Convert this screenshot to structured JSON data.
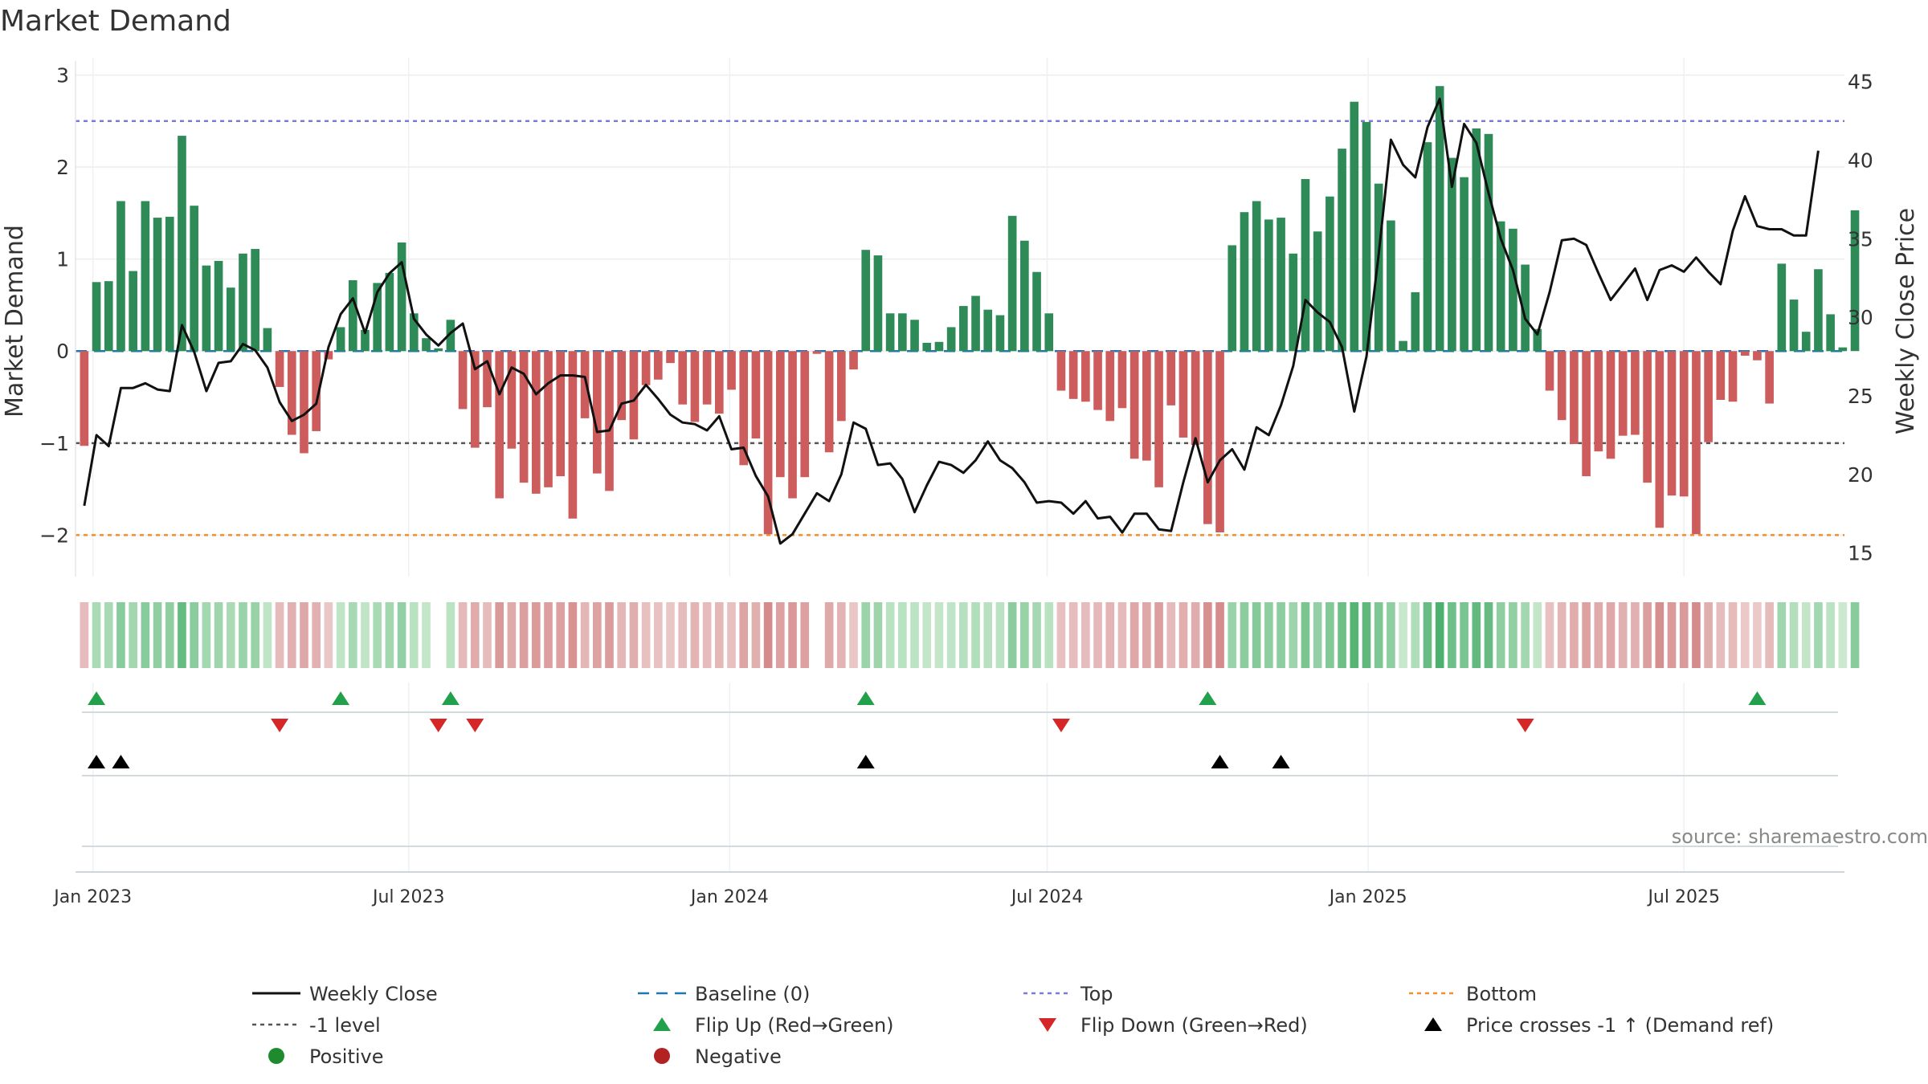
{
  "chart_data": {
    "type": "bar",
    "title": "Market Demand",
    "ylabel_left": "Market Demand",
    "ylabel_right": "Weekly Close Price",
    "ylim_left": [
      -2.45,
      3.1
    ],
    "ylim_right": [
      13.5,
      46
    ],
    "yticks_left": [
      {
        "value": 3,
        "label": "3"
      },
      {
        "value": 2,
        "label": "2"
      },
      {
        "value": 1,
        "label": "1"
      },
      {
        "value": 0,
        "label": "0"
      },
      {
        "value": -1,
        "label": "−1"
      },
      {
        "value": -2,
        "label": "−2"
      }
    ],
    "yticks_right": [
      15,
      20,
      25,
      30,
      35,
      40,
      45
    ],
    "start_date": "2022-12-27",
    "weeks": 144,
    "x_range_days": [
      -5,
      1009
    ],
    "xticks": [
      {
        "label": "Jan 2023",
        "day": 5
      },
      {
        "label": "Jul 2023",
        "day": 186
      },
      {
        "label": "Jan 2024",
        "day": 370
      },
      {
        "label": "Jul 2024",
        "day": 552
      },
      {
        "label": "Jan 2025",
        "day": 736
      },
      {
        "label": "Jul 2025",
        "day": 917
      }
    ],
    "reference_lines": {
      "top": 2.5,
      "bottom": -2.0,
      "minus_one": -1.0,
      "baseline": 0
    },
    "series": [
      {
        "name": "Market Demand",
        "values": [
          -1.03,
          0.75,
          0.76,
          1.63,
          0.87,
          1.63,
          1.45,
          1.46,
          2.34,
          1.58,
          0.93,
          0.98,
          0.69,
          1.06,
          1.11,
          0.25,
          -0.39,
          -0.91,
          -1.11,
          -0.87,
          -0.09,
          0.26,
          0.77,
          0.23,
          0.74,
          0.85,
          1.18,
          0.41,
          0.14,
          0.03,
          0.34,
          -0.63,
          -1.05,
          -0.61,
          -1.6,
          -1.06,
          -1.43,
          -1.55,
          -1.48,
          -1.36,
          -1.82,
          -0.73,
          -1.33,
          -1.52,
          -0.75,
          -0.96,
          -0.37,
          -0.31,
          -0.13,
          -0.58,
          -0.77,
          -0.58,
          -0.68,
          -0.42,
          -1.24,
          -0.95,
          -1.99,
          -1.37,
          -1.6,
          -1.37,
          -0.03,
          -1.1,
          -0.76,
          -0.2,
          1.1,
          1.04,
          0.41,
          0.41,
          0.34,
          0.09,
          0.1,
          0.26,
          0.49,
          0.6,
          0.45,
          0.39,
          1.47,
          1.2,
          0.86,
          0.41,
          -0.43,
          -0.52,
          -0.55,
          -0.64,
          -0.76,
          -0.62,
          -1.17,
          -1.19,
          -1.48,
          -0.59,
          -0.94,
          -1.02,
          -1.88,
          -1.97,
          1.15,
          1.51,
          1.63,
          1.43,
          1.45,
          1.06,
          1.87,
          1.3,
          1.68,
          2.2,
          2.71,
          2.49,
          1.82,
          1.42,
          0.11,
          0.64,
          2.27,
          2.88,
          2.1,
          1.89,
          2.42,
          2.36,
          1.41,
          1.33,
          0.94,
          0.24,
          -0.43,
          -0.75,
          -1.01,
          -1.36,
          -1.09,
          -1.17,
          -0.92,
          -0.91,
          -1.43,
          -1.92,
          -1.57,
          -1.58,
          -1.99,
          -0.99,
          -0.53,
          -0.55,
          -0.05,
          -0.1,
          -0.57,
          0.95,
          0.56,
          0.21,
          0.89,
          0.4,
          0.04,
          1.53
        ]
      },
      {
        "name": "Weekly Close",
        "values": [
          18.0,
          22.5,
          21.8,
          25.5,
          25.5,
          25.8,
          25.4,
          25.3,
          29.5,
          27.8,
          25.3,
          27.1,
          27.2,
          28.3,
          27.9,
          26.8,
          24.6,
          23.4,
          23.8,
          24.5,
          28.1,
          30.2,
          31.2,
          29.0,
          31.6,
          32.8,
          33.5,
          29.9,
          28.9,
          28.2,
          29.0,
          29.6,
          26.7,
          27.2,
          25.1,
          26.8,
          26.4,
          25.1,
          25.8,
          26.3,
          26.3,
          26.2,
          22.7,
          22.8,
          24.5,
          24.7,
          25.7,
          24.8,
          23.8,
          23.3,
          23.2,
          22.8,
          23.7,
          21.6,
          21.7,
          19.9,
          18.6,
          15.6,
          16.2,
          17.5,
          18.8,
          18.3,
          20.0,
          23.3,
          22.9,
          20.6,
          20.7,
          19.7,
          17.6,
          19.3,
          20.8,
          20.6,
          20.1,
          20.9,
          22.1,
          20.9,
          20.4,
          19.5,
          18.2,
          18.3,
          18.2,
          17.5,
          18.3,
          17.2,
          17.3,
          16.3,
          17.5,
          17.5,
          16.5,
          16.4,
          19.5,
          22.3,
          19.5,
          20.9,
          21.6,
          20.3,
          23.0,
          22.5,
          24.4,
          26.9,
          31.1,
          30.3,
          29.7,
          28.1,
          24.0,
          27.5,
          34.0,
          41.3,
          39.7,
          38.9,
          42.1,
          43.9,
          38.3,
          42.3,
          41.1,
          37.9,
          35.0,
          33.0,
          29.9,
          28.9,
          31.6,
          34.9,
          35.0,
          34.6,
          32.8,
          31.1,
          32.1,
          33.1,
          31.1,
          33.0,
          33.3,
          32.9,
          33.8,
          32.9,
          32.1,
          35.5,
          37.7,
          35.8,
          35.6,
          35.6,
          35.2,
          35.2,
          40.6
        ]
      }
    ],
    "strip_intensity": [
      0.2,
      0.25,
      0.27,
      0.45,
      0.3,
      0.45,
      0.4,
      0.41,
      0.66,
      0.44,
      0.3,
      0.32,
      0.25,
      0.35,
      0.36,
      0.12,
      0.2,
      0.3,
      0.37,
      0.3,
      0.1,
      0.12,
      0.27,
      0.12,
      0.26,
      0.29,
      0.38,
      0.16,
      0.1,
      0.1,
      0.15,
      0.22,
      0.34,
      0.2,
      0.5,
      0.35,
      0.45,
      0.48,
      0.46,
      0.43,
      0.56,
      0.25,
      0.42,
      0.47,
      0.25,
      0.32,
      0.16,
      0.14,
      0.1,
      0.2,
      0.26,
      0.2,
      0.23,
      0.16,
      0.4,
      0.31,
      0.62,
      0.43,
      0.5,
      0.43,
      0.0,
      0.36,
      0.26,
      0.1,
      0.34,
      0.33,
      0.16,
      0.16,
      0.14,
      0.1,
      0.1,
      0.12,
      0.18,
      0.21,
      0.17,
      0.15,
      0.43,
      0.36,
      0.28,
      0.16,
      0.16,
      0.19,
      0.2,
      0.22,
      0.26,
      0.21,
      0.38,
      0.38,
      0.46,
      0.21,
      0.31,
      0.33,
      0.58,
      0.61,
      0.35,
      0.43,
      0.46,
      0.41,
      0.42,
      0.33,
      0.53,
      0.38,
      0.48,
      0.61,
      0.75,
      0.69,
      0.51,
      0.41,
      0.08,
      0.22,
      0.64,
      0.8,
      0.6,
      0.54,
      0.67,
      0.66,
      0.41,
      0.39,
      0.3,
      0.1,
      0.16,
      0.25,
      0.33,
      0.43,
      0.35,
      0.38,
      0.3,
      0.3,
      0.45,
      0.59,
      0.49,
      0.49,
      0.62,
      0.32,
      0.19,
      0.2,
      0.08,
      0.08,
      0.2,
      0.31,
      0.2,
      0.1,
      0.29,
      0.15,
      0.06,
      0.45
    ],
    "flip_up_weeks": [
      1,
      21,
      30,
      64,
      92,
      137
    ],
    "flip_down_weeks": [
      16,
      29,
      32,
      80,
      118
    ],
    "price_cross_weeks": [
      1,
      3,
      64,
      93,
      98
    ],
    "legend": [
      {
        "label": "Weekly Close",
        "marker": "line-black"
      },
      {
        "label": "Baseline (0)",
        "marker": "dash-blue"
      },
      {
        "label": "Top",
        "marker": "dot-purple"
      },
      {
        "label": "Bottom",
        "marker": "dot-orange"
      },
      {
        "label": "-1 level",
        "marker": "dot-gray"
      },
      {
        "label": "Flip Up (Red→Green)",
        "marker": "triangle-up-green"
      },
      {
        "label": "Flip Down (Green→Red)",
        "marker": "triangle-down-red"
      },
      {
        "label": "Price crosses -1 ↑ (Demand ref)",
        "marker": "triangle-up-black"
      },
      {
        "label": "Positive",
        "marker": "circle-green"
      },
      {
        "label": "Negative",
        "marker": "circle-red"
      }
    ],
    "source": "source: sharemaestro.com"
  },
  "colors": {
    "positive": "#2e8b57",
    "negative": "#cd5c5c",
    "price": "#111111",
    "baseline": "#1f77b4",
    "top": "#7b7bd8",
    "bottom": "#f28e2b",
    "minus_one": "#555555",
    "flip_up": "#22a04b",
    "flip_down": "#d62728",
    "cross": "#000000",
    "legend_pos": "#1e8c2e",
    "legend_neg": "#b22222"
  }
}
